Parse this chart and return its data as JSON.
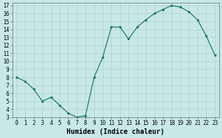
{
  "xlabel": "Humidex (Indice chaleur)",
  "x": [
    0,
    1,
    2,
    3,
    4,
    5,
    6,
    7,
    8,
    9,
    10,
    11,
    12,
    13,
    14,
    15,
    16,
    17,
    18,
    19,
    20,
    21,
    22,
    23
  ],
  "y": [
    8.0,
    7.5,
    6.5,
    5.0,
    5.5,
    4.5,
    3.5,
    3.0,
    3.2,
    8.0,
    10.5,
    14.3,
    14.3,
    12.8,
    14.3,
    15.2,
    16.0,
    16.5,
    17.0,
    16.8,
    16.2,
    15.2,
    13.2,
    10.8
  ],
  "line_color": "#1a7a5e",
  "marker": "o",
  "marker_size": 2.0,
  "bg_color": "#c8e8e8",
  "grid_color": "#b0cece",
  "ylim": [
    3,
    17
  ],
  "xlim": [
    -0.5,
    23.5
  ],
  "yticks": [
    3,
    4,
    5,
    6,
    7,
    8,
    9,
    10,
    11,
    12,
    13,
    14,
    15,
    16,
    17
  ],
  "xticks": [
    0,
    1,
    2,
    3,
    4,
    5,
    6,
    7,
    8,
    9,
    10,
    11,
    12,
    13,
    14,
    15,
    16,
    17,
    18,
    19,
    20,
    21,
    22,
    23
  ],
  "tick_fontsize": 5.5,
  "xlabel_fontsize": 7.0,
  "linewidth": 0.9
}
